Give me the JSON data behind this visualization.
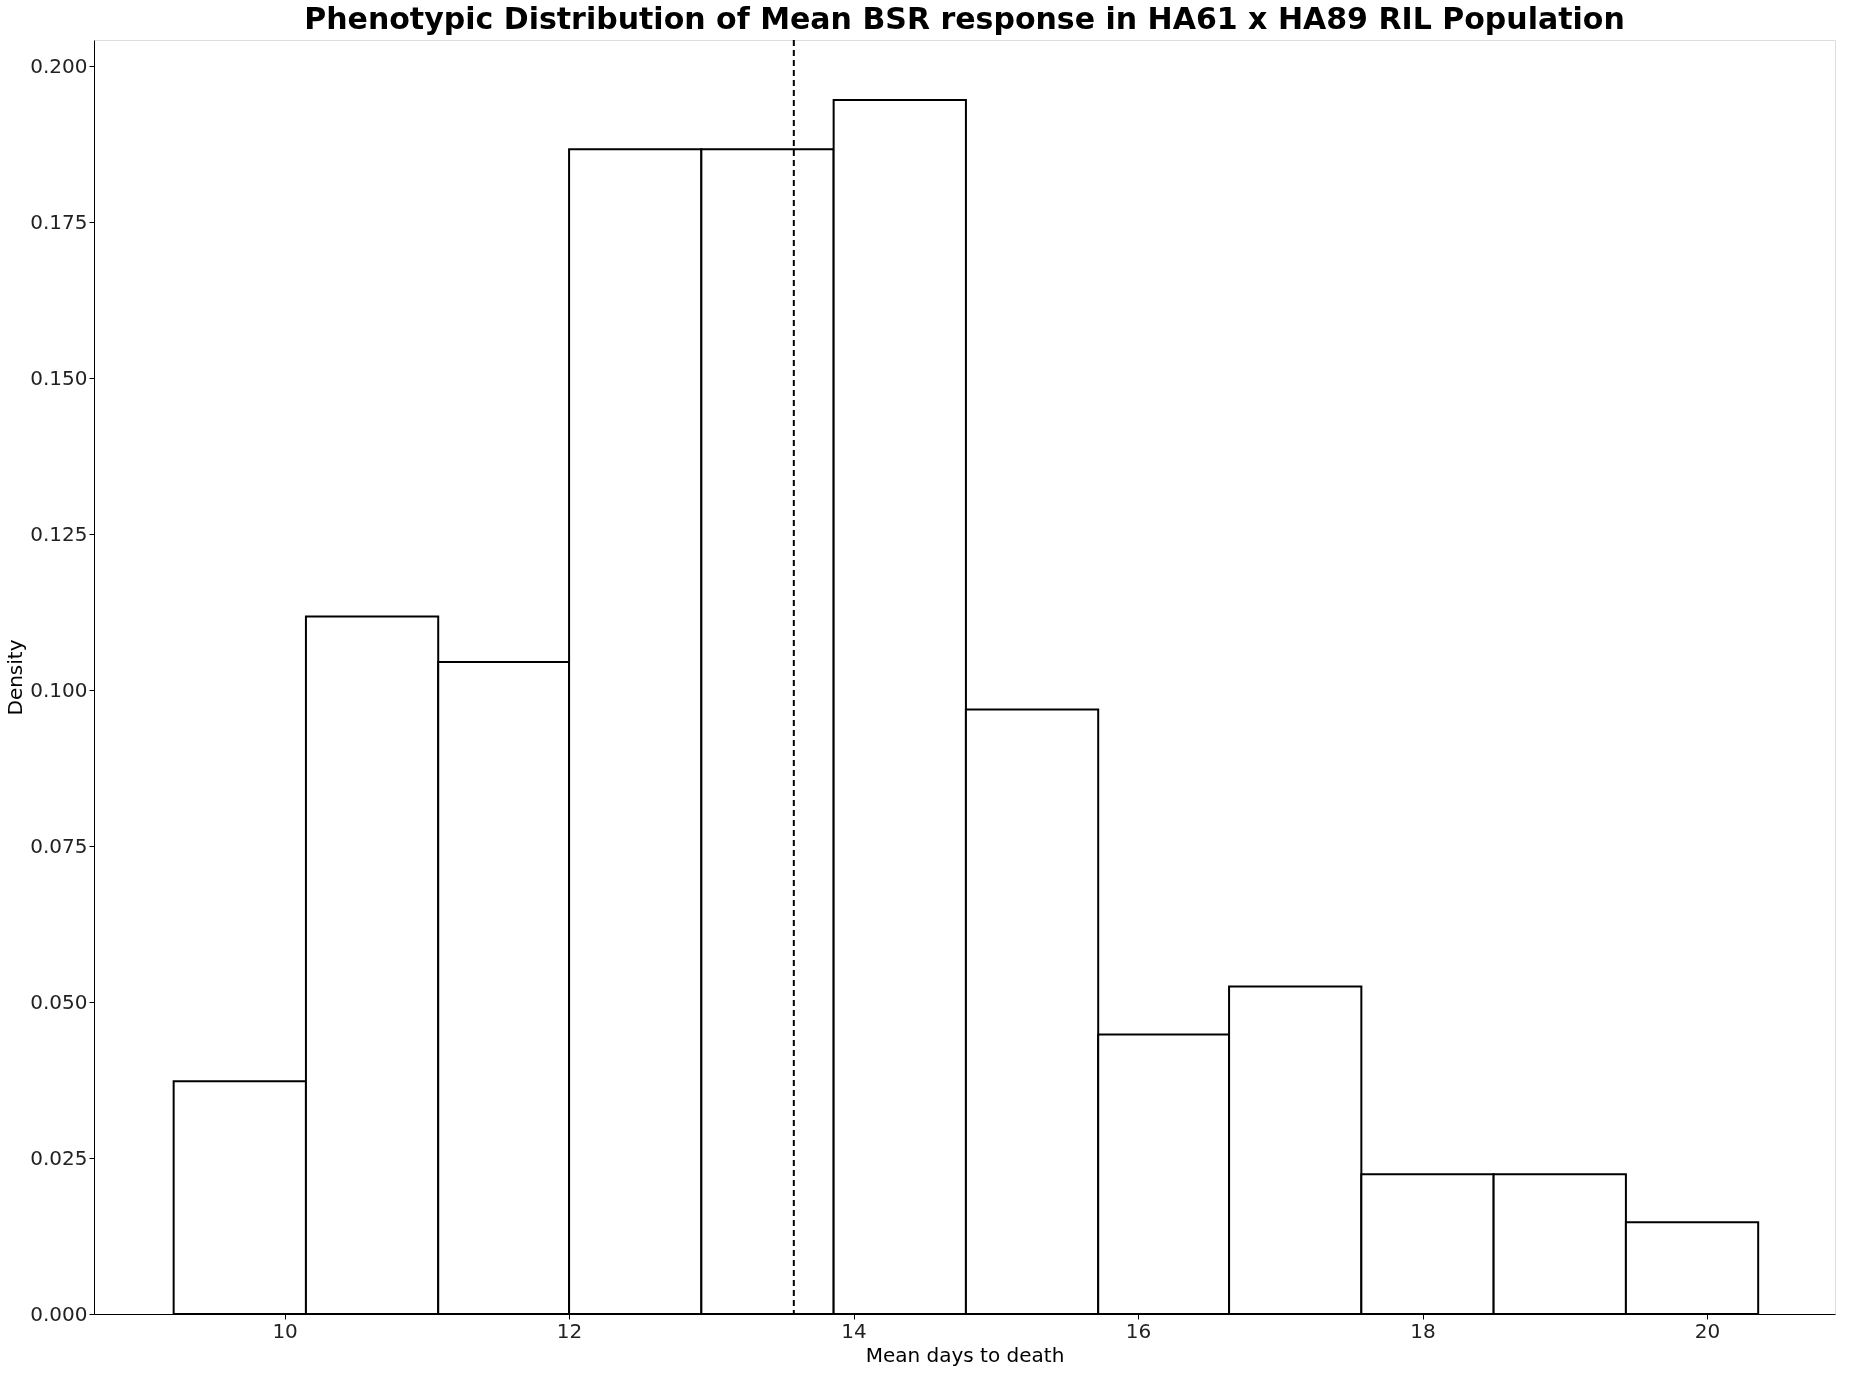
{
  "chart_data": {
    "type": "histogram",
    "title": "Phenotypic Distribution of Mean BSR response in HA61 x HA89 RIL Population",
    "xlabel": "Mean days to death",
    "ylabel": "Density",
    "bins": [
      9.22,
      10.15,
      11.08,
      12.0,
      12.93,
      13.86,
      14.79,
      15.72,
      16.64,
      17.57,
      18.5,
      19.43,
      20.36
    ],
    "values": [
      0.0373,
      0.1118,
      0.1045,
      0.1867,
      0.1867,
      0.1946,
      0.0969,
      0.0448,
      0.0525,
      0.0224,
      0.0224,
      0.0147
    ],
    "color": "#ffffff",
    "xlim": [
      8.66,
      20.9
    ],
    "ylim": [
      0,
      0.2042
    ],
    "xticks": [
      10,
      12,
      14,
      16,
      18,
      20
    ],
    "yticks": [
      {
        "value": 0,
        "label": "0.000"
      },
      {
        "value": 0.025,
        "label": "0.025"
      },
      {
        "value": 0.05,
        "label": "0.050"
      },
      {
        "value": 0.075,
        "label": "0.075"
      },
      {
        "value": 0.1,
        "label": "0.100"
      },
      {
        "value": 0.125,
        "label": "0.125"
      },
      {
        "value": 0.15,
        "label": "0.150"
      },
      {
        "value": 0.175,
        "label": "0.175"
      },
      {
        "value": 0.2,
        "label": "0.200"
      }
    ],
    "ref_lines": [
      {
        "axis": "x",
        "value": 13.58,
        "label": null,
        "line_style": "dashed",
        "color": "#000000"
      }
    ],
    "grid": false
  }
}
